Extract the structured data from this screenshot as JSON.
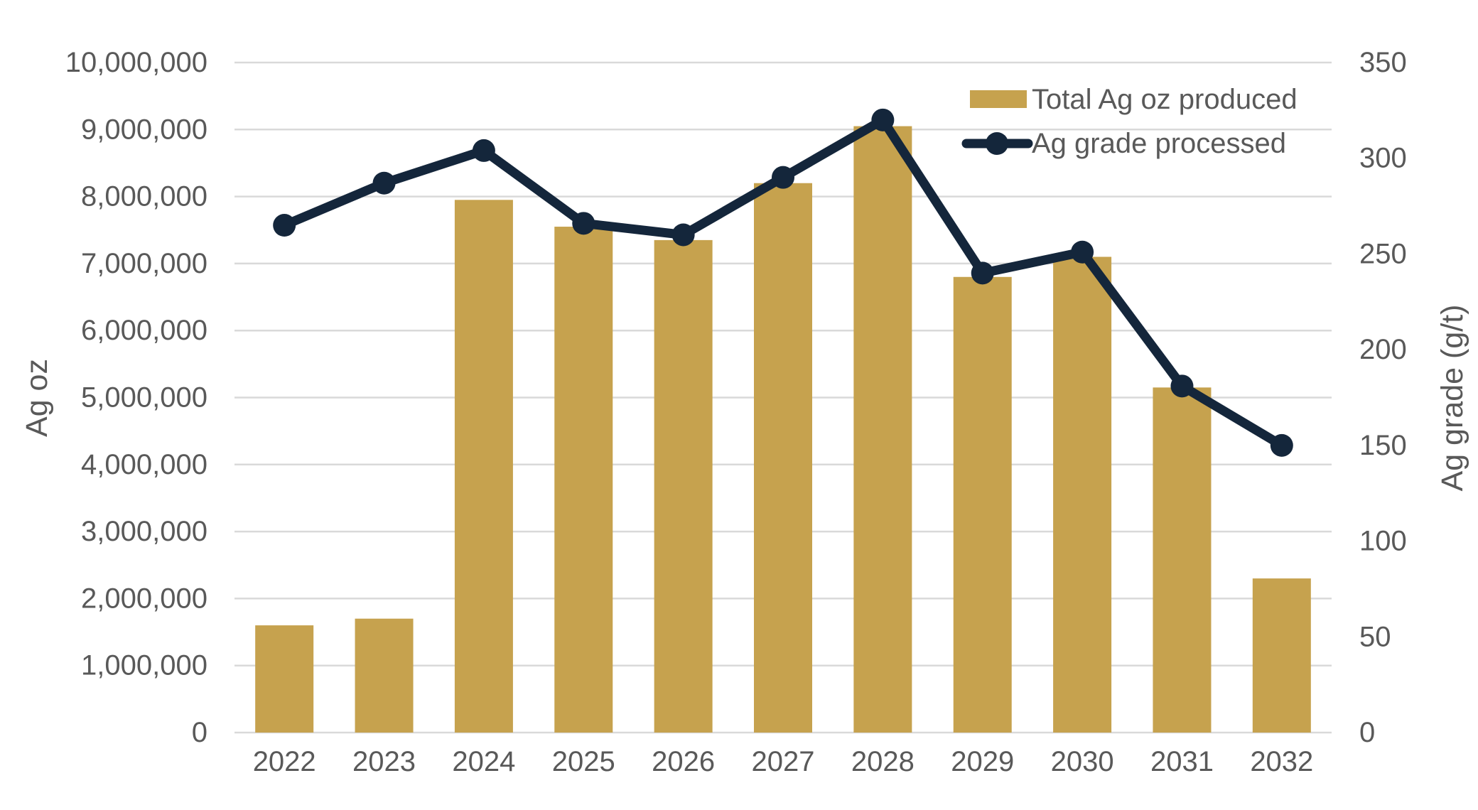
{
  "chart_data": {
    "type": "bar",
    "subtype": "combo-bar-line-dual-axis",
    "title": "",
    "categories": [
      "2022",
      "2023",
      "2024",
      "2025",
      "2026",
      "2027",
      "2028",
      "2029",
      "2030",
      "2031",
      "2032"
    ],
    "series": [
      {
        "name": "Total Ag oz produced",
        "type": "bar",
        "axis": "left",
        "values": [
          1600000,
          1700000,
          7950000,
          7550000,
          7350000,
          8200000,
          9050000,
          6800000,
          7100000,
          5150000,
          2300000
        ]
      },
      {
        "name": "Ag grade processed",
        "type": "line",
        "axis": "right",
        "values": [
          265,
          287,
          304,
          266,
          260,
          290,
          320,
          240,
          251,
          181,
          150
        ]
      }
    ],
    "left_axis": {
      "title": "Ag oz",
      "min": 0,
      "max": 10000000,
      "step": 1000000,
      "tick_labels": [
        "0",
        "1,000,000",
        "2,000,000",
        "3,000,000",
        "4,000,000",
        "5,000,000",
        "6,000,000",
        "7,000,000",
        "8,000,000",
        "9,000,000",
        "10,000,000"
      ]
    },
    "right_axis": {
      "title": "Ag grade (g/t)",
      "min": 0,
      "max": 350,
      "step": 50,
      "tick_labels": [
        "0",
        "50",
        "100",
        "150",
        "200",
        "250",
        "300",
        "350"
      ]
    },
    "legend": {
      "position": "top-right",
      "entries": [
        "Total Ag oz produced",
        "Ag grade processed"
      ]
    },
    "grid": "horizontal",
    "colors": {
      "bar": "#C6A24E",
      "line": "#14263B",
      "gridline": "#D9D9D9",
      "text": "#595959",
      "background": "#FFFFFF"
    }
  }
}
